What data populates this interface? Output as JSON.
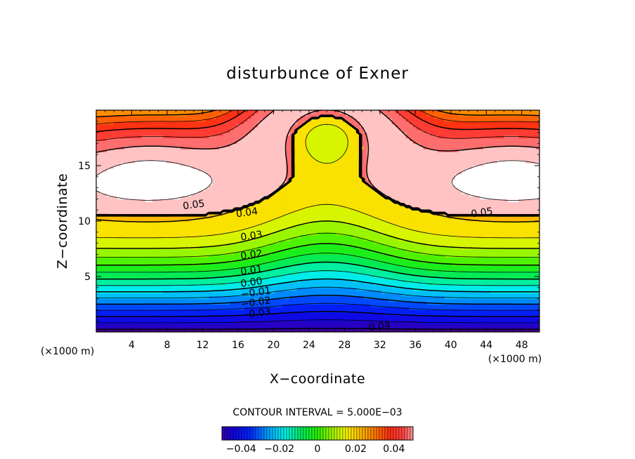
{
  "chart_data": {
    "type": "contour",
    "title": "disturbunce of Exner",
    "xlabel": "X−coordinate",
    "ylabel": "Z−coordinate",
    "x_unit": "(×1000 m)",
    "y_unit": "(×1000 m)",
    "xlim": [
      0,
      50
    ],
    "ylim": [
      0,
      20
    ],
    "x_ticks": [
      4,
      8,
      12,
      16,
      20,
      24,
      28,
      32,
      36,
      40,
      44,
      48
    ],
    "y_ticks": [
      5,
      10,
      15
    ],
    "contour_interval_text": "CONTOUR INTERVAL = 5.000E−03",
    "contour_interval": 0.005,
    "value_range": [
      -0.05,
      0.055
    ],
    "contour_labels": [
      {
        "text": "0.05",
        "x": 11,
        "z": 11.5
      },
      {
        "text": "0.05",
        "x": 43.5,
        "z": 10.8
      },
      {
        "text": "0.04",
        "x": 17,
        "z": 10.8
      },
      {
        "text": "0.03",
        "x": 17.5,
        "z": 8.7
      },
      {
        "text": "0.02",
        "x": 17.5,
        "z": 7.0
      },
      {
        "text": "0.01",
        "x": 17.5,
        "z": 5.6
      },
      {
        "text": "0.00",
        "x": 17.5,
        "z": 4.5
      },
      {
        "text": "−0.01",
        "x": 18,
        "z": 3.6
      },
      {
        "text": "−0.02",
        "x": 18,
        "z": 2.7
      },
      {
        "text": "−0.03",
        "x": 18,
        "z": 1.7
      },
      {
        "text": "−0.04",
        "x": 31.5,
        "z": 0.5
      }
    ],
    "colorbar": {
      "min": -0.05,
      "max": 0.05,
      "ticks": [
        -0.04,
        -0.02,
        0,
        0.02,
        0.04
      ],
      "tick_labels": [
        "−0.04",
        "−0.02",
        "0",
        "0.02",
        "0.04"
      ]
    },
    "grid": false,
    "legend": "colorbar bottom-center"
  }
}
